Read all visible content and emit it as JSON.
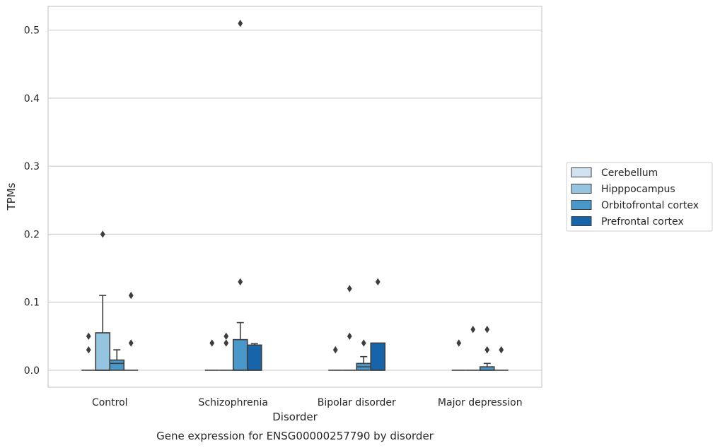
{
  "chart_data": {
    "type": "box",
    "title": "Gene expression for ENSG00000257790 by disorder",
    "xlabel": "Disorder",
    "ylabel": "TPMs",
    "ylim": [
      -0.025,
      0.535
    ],
    "yticks": [
      0.0,
      0.1,
      0.2,
      0.3,
      0.4,
      0.5
    ],
    "ytick_labels": [
      "0.0",
      "0.1",
      "0.2",
      "0.3",
      "0.4",
      "0.5"
    ],
    "categories": [
      "Control",
      "Schizophrenia",
      "Bipolar disorder",
      "Major depression"
    ],
    "grid": true,
    "legend_position": "right",
    "series": [
      {
        "name": "Cerebellum",
        "color": "#d0e1f2",
        "boxes": [
          {
            "q1": 0,
            "median": 0,
            "q3": 0,
            "whisker_low": 0,
            "whisker_high": 0,
            "outliers": [
              0.03,
              0.05
            ]
          },
          {
            "q1": 0,
            "median": 0,
            "q3": 0,
            "whisker_low": 0,
            "whisker_high": 0,
            "outliers": [
              0.04
            ]
          },
          {
            "q1": 0,
            "median": 0,
            "q3": 0,
            "whisker_low": 0,
            "whisker_high": 0,
            "outliers": [
              0.03
            ]
          },
          {
            "q1": 0,
            "median": 0,
            "q3": 0,
            "whisker_low": 0,
            "whisker_high": 0,
            "outliers": [
              0.04
            ]
          }
        ]
      },
      {
        "name": "Hipppocampus",
        "color": "#94c4df",
        "boxes": [
          {
            "q1": 0,
            "median": 0,
            "q3": 0.055,
            "whisker_low": 0,
            "whisker_high": 0.11,
            "outliers": [
              0.2
            ]
          },
          {
            "q1": 0,
            "median": 0,
            "q3": 0,
            "whisker_low": 0,
            "whisker_high": 0,
            "outliers": [
              0.04,
              0.05
            ]
          },
          {
            "q1": 0,
            "median": 0,
            "q3": 0,
            "whisker_low": 0,
            "whisker_high": 0,
            "outliers": [
              0.05,
              0.12
            ]
          },
          {
            "q1": 0,
            "median": 0,
            "q3": 0,
            "whisker_low": 0,
            "whisker_high": 0,
            "outliers": [
              0.06
            ]
          }
        ]
      },
      {
        "name": "Orbitofrontal cortex",
        "color": "#4a98c9",
        "boxes": [
          {
            "q1": 0,
            "median": 0.01,
            "q3": 0.015,
            "whisker_low": 0,
            "whisker_high": 0.03,
            "outliers": []
          },
          {
            "q1": 0,
            "median": 0,
            "q3": 0.045,
            "whisker_low": 0,
            "whisker_high": 0.07,
            "outliers": [
              0.13,
              0.51
            ]
          },
          {
            "q1": 0,
            "median": 0.005,
            "q3": 0.01,
            "whisker_low": 0,
            "whisker_high": 0.02,
            "outliers": [
              0.04
            ]
          },
          {
            "q1": 0,
            "median": 0,
            "q3": 0.005,
            "whisker_low": 0,
            "whisker_high": 0.01,
            "outliers": [
              0.03,
              0.06
            ]
          }
        ]
      },
      {
        "name": "Prefrontal cortex",
        "color": "#1764ab",
        "boxes": [
          {
            "q1": 0,
            "median": 0,
            "q3": 0,
            "whisker_low": 0,
            "whisker_high": 0,
            "outliers": [
              0.04,
              0.11
            ]
          },
          {
            "q1": 0,
            "median": 0,
            "q3": 0.037,
            "whisker_low": 0,
            "whisker_high": 0.039,
            "outliers": []
          },
          {
            "q1": 0,
            "median": 0,
            "q3": 0.04,
            "whisker_low": 0,
            "whisker_high": 0.04,
            "outliers": [
              0.13
            ]
          },
          {
            "q1": 0,
            "median": 0,
            "q3": 0,
            "whisker_low": 0,
            "whisker_high": 0,
            "outliers": [
              0.03
            ]
          }
        ]
      }
    ]
  }
}
